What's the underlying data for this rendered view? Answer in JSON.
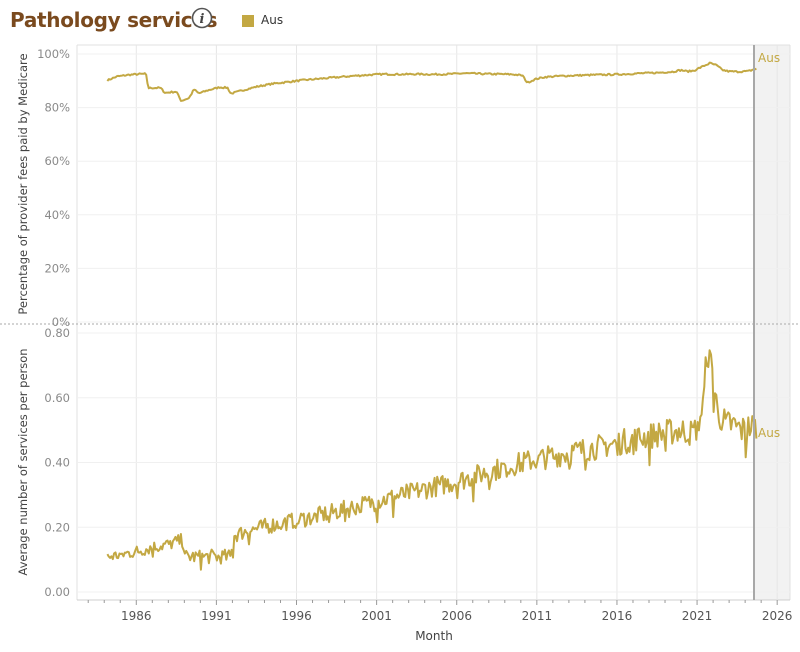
{
  "header": {
    "title": "Pathology services",
    "info_icon": "info-icon",
    "legend": [
      {
        "label": "Aus",
        "color": "#c3a843"
      }
    ]
  },
  "colors": {
    "series": "#c3a843",
    "title": "#7a4a1e",
    "grid": "#e6e6e6",
    "axis_text": "#8a8a8a",
    "divider": "#aaaaaa",
    "shade": "#f2f2f2",
    "refline": "#a8a8a8"
  },
  "chart_data": [
    {
      "type": "line",
      "panel": "top",
      "ylabel": "Percentage of provider fees paid by Medicare",
      "ylim": [
        0,
        1.0
      ],
      "yticks": [
        {
          "v": 0,
          "label": "0%"
        },
        {
          "v": 0.2,
          "label": "20%"
        },
        {
          "v": 0.4,
          "label": "40%"
        },
        {
          "v": 0.6,
          "label": "60%"
        },
        {
          "v": 0.8,
          "label": "80%"
        },
        {
          "v": 1.0,
          "label": "100%"
        }
      ],
      "series": [
        {
          "name": "Aus",
          "end_label": "Aus",
          "points": [
            [
              1984.2,
              0.902
            ],
            [
              1984.8,
              0.916
            ],
            [
              1985.5,
              0.922
            ],
            [
              1986.2,
              0.925
            ],
            [
              1986.6,
              0.926
            ],
            [
              1986.75,
              0.873
            ],
            [
              1987.5,
              0.874
            ],
            [
              1987.8,
              0.855
            ],
            [
              1988.5,
              0.86
            ],
            [
              1988.8,
              0.825
            ],
            [
              1989.3,
              0.836
            ],
            [
              1989.6,
              0.868
            ],
            [
              1989.9,
              0.853
            ],
            [
              1990.5,
              0.865
            ],
            [
              1991.2,
              0.876
            ],
            [
              1991.7,
              0.874
            ],
            [
              1991.9,
              0.852
            ],
            [
              1992.6,
              0.864
            ],
            [
              1993.5,
              0.878
            ],
            [
              1994.5,
              0.889
            ],
            [
              1995.5,
              0.896
            ],
            [
              1996.5,
              0.903
            ],
            [
              1997.5,
              0.908
            ],
            [
              1998.5,
              0.913
            ],
            [
              1999.5,
              0.918
            ],
            [
              2000.5,
              0.922
            ],
            [
              2001.5,
              0.925
            ],
            [
              2002.5,
              0.924
            ],
            [
              2003.5,
              0.925
            ],
            [
              2004.5,
              0.924
            ],
            [
              2005.5,
              0.925
            ],
            [
              2006.5,
              0.928
            ],
            [
              2007.5,
              0.926
            ],
            [
              2008.5,
              0.925
            ],
            [
              2009.5,
              0.924
            ],
            [
              2010.1,
              0.92
            ],
            [
              2010.4,
              0.893
            ],
            [
              2010.9,
              0.906
            ],
            [
              2011.5,
              0.914
            ],
            [
              2012.5,
              0.918
            ],
            [
              2013.5,
              0.92
            ],
            [
              2014.5,
              0.922
            ],
            [
              2015.5,
              0.923
            ],
            [
              2016.5,
              0.925
            ],
            [
              2017.5,
              0.928
            ],
            [
              2018.5,
              0.93
            ],
            [
              2019.5,
              0.934
            ],
            [
              2020.0,
              0.94
            ],
            [
              2020.4,
              0.935
            ],
            [
              2020.8,
              0.938
            ],
            [
              2021.3,
              0.952
            ],
            [
              2021.8,
              0.966
            ],
            [
              2022.2,
              0.958
            ],
            [
              2022.6,
              0.94
            ],
            [
              2023.0,
              0.935
            ],
            [
              2023.6,
              0.934
            ],
            [
              2024.2,
              0.936
            ],
            [
              2024.7,
              0.945
            ]
          ]
        }
      ]
    },
    {
      "type": "line",
      "panel": "bottom",
      "ylabel": "Average number of services per person",
      "xlabel": "Month",
      "ylim": [
        0,
        0.8
      ],
      "yticks": [
        {
          "v": 0,
          "label": "0.00"
        },
        {
          "v": 0.2,
          "label": "0.20"
        },
        {
          "v": 0.4,
          "label": "0.40"
        },
        {
          "v": 0.6,
          "label": "0.60"
        },
        {
          "v": 0.8,
          "label": "0.80"
        }
      ],
      "xlim": [
        1982.3,
        2026.8
      ],
      "xticks": [
        {
          "v": 1986,
          "label": "1986"
        },
        {
          "v": 1991,
          "label": "1991"
        },
        {
          "v": 1996,
          "label": "1996"
        },
        {
          "v": 2001,
          "label": "2001"
        },
        {
          "v": 2006,
          "label": "2006"
        },
        {
          "v": 2011,
          "label": "2011"
        },
        {
          "v": 2016,
          "label": "2016"
        },
        {
          "v": 2021,
          "label": "2021"
        },
        {
          "v": 2026,
          "label": "2026"
        }
      ],
      "series": [
        {
          "name": "Aus",
          "end_label": "Aus",
          "points": [
            [
              1984.2,
              0.108
            ],
            [
              1985.0,
              0.115
            ],
            [
              1986.0,
              0.125
            ],
            [
              1987.0,
              0.138
            ],
            [
              1988.0,
              0.148
            ],
            [
              1988.9,
              0.16
            ],
            [
              1989.1,
              0.11
            ],
            [
              1990.0,
              0.108
            ],
            [
              1991.0,
              0.11
            ],
            [
              1991.9,
              0.108
            ],
            [
              1992.1,
              0.175
            ],
            [
              1993.0,
              0.19
            ],
            [
              1994.0,
              0.202
            ],
            [
              1995.0,
              0.212
            ],
            [
              1996.0,
              0.222
            ],
            [
              1997.0,
              0.232
            ],
            [
              1998.0,
              0.243
            ],
            [
              1999.0,
              0.255
            ],
            [
              2000.0,
              0.268
            ],
            [
              2001.0,
              0.28
            ],
            [
              2002.0,
              0.292
            ],
            [
              2003.0,
              0.305
            ],
            [
              2004.0,
              0.318
            ],
            [
              2005.0,
              0.33
            ],
            [
              2006.0,
              0.342
            ],
            [
              2007.0,
              0.356
            ],
            [
              2008.0,
              0.372
            ],
            [
              2009.0,
              0.385
            ],
            [
              2010.0,
              0.398
            ],
            [
              2011.0,
              0.41
            ],
            [
              2012.0,
              0.42
            ],
            [
              2013.0,
              0.43
            ],
            [
              2014.0,
              0.44
            ],
            [
              2015.0,
              0.45
            ],
            [
              2016.0,
              0.46
            ],
            [
              2017.0,
              0.472
            ],
            [
              2018.0,
              0.482
            ],
            [
              2019.0,
              0.492
            ],
            [
              2020.0,
              0.5
            ],
            [
              2020.7,
              0.49
            ],
            [
              2021.0,
              0.51
            ],
            [
              2021.4,
              0.58
            ],
            [
              2021.6,
              0.74
            ],
            [
              2021.9,
              0.7
            ],
            [
              2022.3,
              0.55
            ],
            [
              2022.8,
              0.52
            ],
            [
              2023.3,
              0.515
            ],
            [
              2023.8,
              0.5
            ],
            [
              2024.3,
              0.51
            ],
            [
              2024.7,
              0.51
            ]
          ],
          "noise": 0.018,
          "noise_growth": 0.045
        }
      ]
    }
  ]
}
